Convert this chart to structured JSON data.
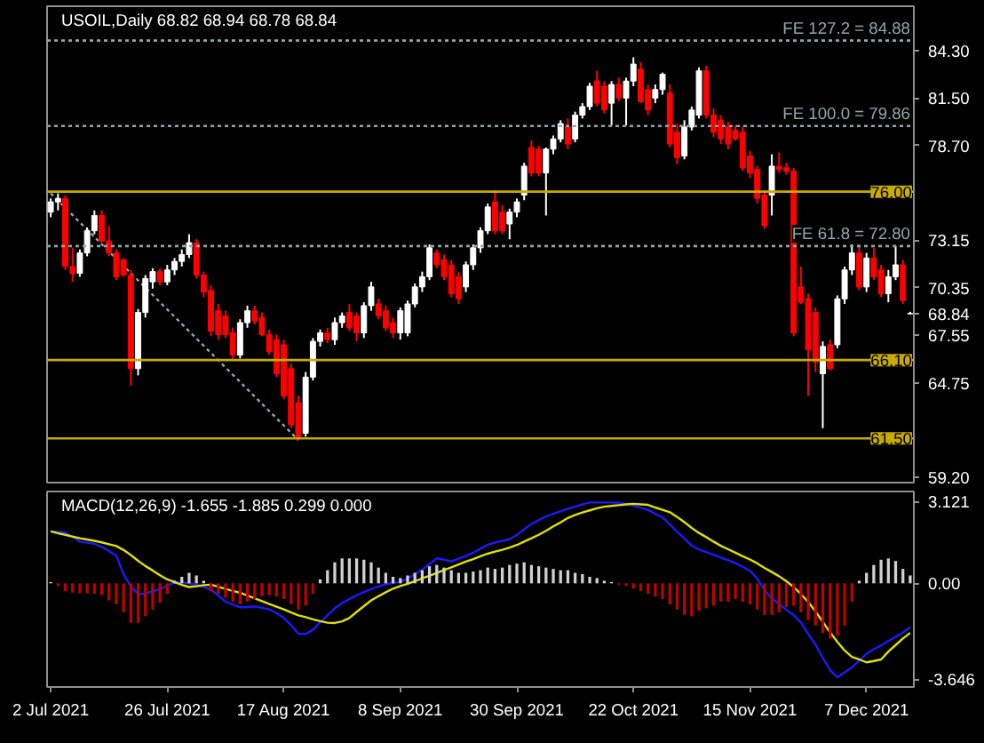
{
  "chart_data": [
    {
      "type": "candlestick",
      "title": "USOIL,Daily 68.82 68.94 68.78 68.84",
      "categories": [
        null,
        null,
        null,
        null,
        null,
        null,
        null,
        null,
        null,
        null,
        null,
        null,
        null,
        null,
        null,
        null,
        null,
        null,
        null,
        null,
        null,
        null,
        null,
        null,
        null,
        null,
        null,
        null,
        null,
        null,
        null,
        null,
        null,
        null,
        null,
        null,
        null,
        null,
        null,
        null,
        null,
        null,
        null,
        null,
        null,
        null,
        null,
        null,
        null,
        null,
        null,
        null,
        null,
        null,
        null,
        null,
        null,
        null,
        null,
        null,
        null,
        null,
        null,
        null,
        null,
        null,
        null,
        null,
        null,
        null,
        null,
        null,
        null,
        null,
        null,
        null,
        null,
        null,
        null,
        null,
        null,
        null,
        null,
        null,
        null,
        null,
        null,
        null,
        null,
        null,
        null,
        null,
        null,
        null,
        null,
        null,
        null,
        null,
        null,
        null,
        null,
        null,
        null,
        null,
        null,
        null,
        null,
        null,
        null,
        null,
        null,
        null,
        null,
        null,
        null,
        null,
        null,
        null,
        null
      ],
      "ohlc": [
        [
          74.8,
          75.6,
          74.5,
          75.4
        ],
        [
          75.4,
          75.9,
          74.9,
          75.6
        ],
        [
          75.6,
          75.8,
          71.4,
          71.6
        ],
        [
          71.6,
          72.7,
          70.7,
          71.2
        ],
        [
          71.2,
          72.6,
          71.0,
          72.4
        ],
        [
          72.4,
          73.9,
          72.2,
          73.7
        ],
        [
          73.7,
          74.9,
          73.5,
          74.6
        ],
        [
          74.6,
          74.9,
          73.0,
          73.1
        ],
        [
          73.1,
          74.0,
          72.2,
          72.4
        ],
        [
          72.4,
          72.6,
          70.8,
          71.0
        ],
        [
          72.0,
          72.1,
          71.0,
          71.1
        ],
        [
          71.1,
          71.4,
          64.6,
          65.6
        ],
        [
          65.6,
          69.1,
          65.2,
          68.9
        ],
        [
          68.9,
          71.1,
          68.6,
          70.9
        ],
        [
          70.7,
          71.5,
          70.3,
          71.3
        ],
        [
          71.3,
          71.5,
          70.5,
          70.7
        ],
        [
          70.7,
          71.7,
          70.5,
          71.4
        ],
        [
          71.4,
          72.1,
          71.1,
          71.9
        ],
        [
          71.9,
          72.6,
          71.6,
          72.3
        ],
        [
          72.3,
          73.5,
          72.1,
          73.0
        ],
        [
          73.0,
          73.2,
          70.9,
          71.1
        ],
        [
          71.1,
          71.3,
          69.8,
          70.1
        ],
        [
          70.2,
          70.5,
          67.5,
          67.8
        ],
        [
          69.0,
          69.4,
          67.3,
          67.6
        ],
        [
          68.7,
          69.0,
          67.4,
          67.6
        ],
        [
          67.7,
          68.0,
          66.1,
          66.4
        ],
        [
          66.4,
          68.5,
          66.2,
          68.3
        ],
        [
          68.3,
          69.3,
          68.0,
          69.0
        ],
        [
          69.0,
          69.3,
          68.2,
          68.4
        ],
        [
          68.6,
          68.9,
          67.5,
          67.6
        ],
        [
          67.6,
          67.9,
          66.4,
          66.6
        ],
        [
          67.3,
          67.6,
          65.1,
          65.3
        ],
        [
          67.0,
          67.3,
          63.8,
          64.0
        ],
        [
          65.6,
          65.9,
          62.1,
          62.3
        ],
        [
          63.6,
          64.0,
          61.4,
          61.6
        ],
        [
          61.8,
          65.4,
          61.6,
          65.1
        ],
        [
          65.1,
          67.4,
          64.9,
          67.2
        ],
        [
          67.2,
          67.9,
          66.9,
          67.7
        ],
        [
          67.7,
          68.0,
          67.1,
          67.3
        ],
        [
          67.3,
          68.6,
          67.0,
          68.3
        ],
        [
          68.3,
          68.9,
          68.0,
          68.7
        ],
        [
          68.9,
          69.4,
          67.8,
          68.0
        ],
        [
          68.7,
          68.9,
          67.2,
          67.7
        ],
        [
          67.7,
          69.5,
          67.4,
          69.3
        ],
        [
          69.3,
          70.7,
          69.0,
          70.4
        ],
        [
          69.4,
          69.7,
          68.5,
          68.7
        ],
        [
          69.0,
          69.3,
          67.8,
          68.0
        ],
        [
          68.3,
          68.6,
          67.4,
          67.7
        ],
        [
          67.7,
          69.2,
          67.3,
          69.0
        ],
        [
          67.7,
          69.6,
          67.5,
          69.4
        ],
        [
          69.4,
          70.6,
          69.2,
          70.4
        ],
        [
          70.4,
          71.3,
          70.1,
          71.0
        ],
        [
          71.0,
          72.9,
          70.8,
          72.7
        ],
        [
          72.4,
          72.6,
          71.5,
          71.7
        ],
        [
          72.0,
          72.3,
          70.8,
          71.0
        ],
        [
          71.7,
          72.0,
          69.8,
          70.0
        ],
        [
          71.0,
          71.3,
          69.4,
          69.7
        ],
        [
          70.4,
          71.9,
          70.1,
          71.7
        ],
        [
          71.7,
          72.9,
          71.4,
          72.7
        ],
        [
          72.7,
          73.9,
          72.4,
          73.7
        ],
        [
          73.7,
          75.3,
          73.5,
          75.1
        ],
        [
          75.4,
          76.1,
          73.5,
          73.7
        ],
        [
          74.8,
          75.2,
          73.5,
          73.7
        ],
        [
          74.1,
          75.0,
          73.2,
          74.8
        ],
        [
          74.8,
          75.6,
          74.5,
          75.4
        ],
        [
          75.8,
          77.7,
          75.5,
          77.5
        ],
        [
          78.6,
          79.0,
          76.9,
          77.1
        ],
        [
          78.5,
          78.7,
          76.9,
          77.1
        ],
        [
          77.1,
          78.6,
          74.6,
          78.5
        ],
        [
          78.5,
          79.3,
          78.2,
          79.1
        ],
        [
          79.1,
          80.2,
          78.9,
          80.0
        ],
        [
          79.8,
          80.3,
          78.5,
          78.8
        ],
        [
          79.1,
          80.7,
          78.9,
          80.5
        ],
        [
          80.5,
          81.2,
          80.3,
          81.0
        ],
        [
          81.0,
          82.4,
          80.8,
          82.2
        ],
        [
          82.5,
          83.1,
          81.0,
          81.2
        ],
        [
          82.2,
          82.5,
          80.6,
          80.8
        ],
        [
          81.2,
          82.5,
          79.9,
          82.3
        ],
        [
          82.3,
          82.7,
          81.3,
          81.5
        ],
        [
          81.5,
          82.7,
          79.9,
          82.5
        ],
        [
          82.5,
          83.9,
          82.2,
          83.5
        ],
        [
          83.2,
          83.6,
          81.2,
          81.3
        ],
        [
          82.0,
          82.3,
          80.5,
          80.8
        ],
        [
          81.5,
          82.3,
          81.2,
          82.0
        ],
        [
          82.0,
          83.0,
          81.7,
          82.9
        ],
        [
          81.8,
          82.3,
          78.6,
          78.8
        ],
        [
          79.5,
          80.0,
          77.6,
          78.0
        ],
        [
          78.1,
          80.2,
          77.9,
          79.8
        ],
        [
          79.8,
          81.0,
          79.6,
          80.8
        ],
        [
          80.5,
          83.3,
          80.3,
          83.1
        ],
        [
          83.1,
          83.4,
          80.3,
          80.5
        ],
        [
          80.5,
          80.9,
          79.2,
          79.5
        ],
        [
          80.2,
          80.5,
          78.8,
          79.1
        ],
        [
          79.8,
          80.1,
          78.5,
          78.8
        ],
        [
          79.6,
          79.9,
          79.0,
          79.1
        ],
        [
          79.5,
          79.8,
          77.2,
          77.4
        ],
        [
          78.1,
          78.4,
          76.8,
          77.1
        ],
        [
          77.3,
          77.5,
          75.3,
          75.6
        ],
        [
          75.8,
          76.1,
          73.8,
          74.0
        ],
        [
          75.8,
          78.2,
          74.6,
          77.5
        ],
        [
          77.5,
          78.3,
          77.1,
          77.3
        ],
        [
          77.4,
          77.7,
          77.0,
          77.2
        ],
        [
          77.2,
          77.4,
          67.5,
          67.7
        ],
        [
          70.4,
          71.6,
          69.4,
          69.5
        ],
        [
          69.7,
          70.0,
          64.0,
          66.7
        ],
        [
          68.9,
          69.2,
          65.4,
          66.0
        ],
        [
          65.3,
          67.2,
          62.1,
          66.9
        ],
        [
          67.0,
          67.3,
          65.5,
          65.6
        ],
        [
          67.0,
          69.9,
          66.8,
          69.7
        ],
        [
          69.7,
          71.6,
          69.4,
          71.4
        ],
        [
          71.4,
          72.9,
          71.1,
          72.4
        ],
        [
          72.4,
          72.9,
          70.2,
          70.4
        ],
        [
          70.4,
          72.4,
          70.1,
          72.1
        ],
        [
          72.1,
          72.7,
          70.8,
          71.0
        ],
        [
          71.4,
          71.7,
          69.8,
          70.0
        ],
        [
          70.0,
          71.4,
          69.5,
          71.0
        ],
        [
          71.0,
          72.8,
          70.8,
          71.7
        ],
        [
          71.7,
          72.0,
          69.4,
          69.6
        ],
        [
          68.82,
          68.94,
          68.78,
          68.84
        ]
      ],
      "colors": [
        "#ffffff",
        "#ffffff",
        "#ff0000",
        "#ff0000",
        "#ffffff",
        "#ffffff",
        "#ffffff",
        "#ff0000",
        "#ff0000",
        "#ff0000",
        "#ff0000",
        "#ff0000",
        "#ffffff",
        "#ffffff",
        "#ffffff",
        "#ff0000",
        "#ffffff",
        "#ffffff",
        "#ffffff",
        "#ffffff",
        "#ff0000",
        "#ff0000",
        "#ff0000",
        "#ff0000",
        "#ff0000",
        "#ff0000",
        "#ffffff",
        "#ffffff",
        "#ff0000",
        "#ff0000",
        "#ff0000",
        "#ff0000",
        "#ff0000",
        "#ff0000",
        "#ff0000",
        "#ffffff",
        "#ffffff",
        "#ffffff",
        "#ff0000",
        "#ffffff",
        "#ffffff",
        "#ff0000",
        "#ff0000",
        "#ffffff",
        "#ffffff",
        "#ff0000",
        "#ff0000",
        "#ff0000",
        "#ffffff",
        "#ffffff",
        "#ffffff",
        "#ffffff",
        "#ffffff",
        "#ff0000",
        "#ff0000",
        "#ff0000",
        "#ff0000",
        "#ffffff",
        "#ffffff",
        "#ffffff",
        "#ffffff",
        "#ff0000",
        "#ff0000",
        "#ffffff",
        "#ffffff",
        "#ffffff",
        "#ff0000",
        "#ff0000",
        "#ffffff",
        "#ffffff",
        "#ffffff",
        "#ff0000",
        "#ffffff",
        "#ffffff",
        "#ffffff",
        "#ff0000",
        "#ff0000",
        "#ffffff",
        "#ff0000",
        "#ffffff",
        "#ffffff",
        "#ff0000",
        "#ff0000",
        "#ffffff",
        "#ffffff",
        "#ff0000",
        "#ff0000",
        "#ffffff",
        "#ffffff",
        "#ffffff",
        "#ff0000",
        "#ff0000",
        "#ff0000",
        "#ff0000",
        "#ff0000",
        "#ff0000",
        "#ff0000",
        "#ff0000",
        "#ff0000",
        "#ffffff",
        "#ff0000",
        "#ff0000",
        "#ff0000",
        "#ff0000",
        "#ff0000",
        "#ff0000",
        "#ffffff",
        "#ff0000",
        "#ffffff",
        "#ffffff",
        "#ffffff",
        "#ff0000",
        "#ffffff",
        "#ff0000",
        "#ff0000",
        "#ffffff",
        "#ffffff",
        "#ff0000",
        "#ffffff"
      ],
      "series": [
        {
          "type": "line",
          "values": [
            75.9,
            null,
            null,
            null,
            null,
            null,
            null,
            null,
            null,
            null,
            null,
            null,
            null,
            null,
            null,
            null,
            null,
            null,
            null,
            null,
            null,
            null,
            null,
            null,
            null,
            null,
            null,
            null,
            null,
            null,
            null,
            null,
            null,
            null,
            61.4,
            null,
            null,
            null,
            null,
            null,
            null,
            null,
            null,
            null,
            null,
            null,
            null,
            null,
            null,
            null,
            null,
            null,
            null,
            null,
            null,
            null,
            null,
            null,
            null,
            null,
            null,
            null,
            null,
            null,
            null,
            null,
            null,
            null,
            null,
            null,
            null,
            null,
            null,
            null,
            null,
            null,
            null,
            null,
            null,
            null,
            null,
            null,
            null,
            null,
            null,
            null,
            null,
            null,
            null,
            null,
            null,
            null,
            null,
            null,
            null,
            null,
            null,
            null,
            null,
            null,
            null,
            null,
            null,
            null,
            null,
            null,
            null,
            null,
            null,
            null,
            null,
            null,
            null,
            null,
            null,
            null,
            null,
            null,
            null
          ],
          "color": "#8fa8a8",
          "line_style": "dotted"
        }
      ],
      "ylim": [
        58.9,
        86.9
      ],
      "yticks": [
        {
          "value": 84.3,
          "label": "84.30"
        },
        {
          "value": 81.5,
          "label": "81.50"
        },
        {
          "value": 78.7,
          "label": "78.70"
        },
        {
          "value": 73.15,
          "label": "73.15"
        },
        {
          "value": 70.35,
          "label": "70.35"
        },
        {
          "value": 68.84,
          "label": "68.84"
        },
        {
          "value": 67.55,
          "label": "67.55"
        },
        {
          "value": 64.75,
          "label": "64.75"
        },
        {
          "value": 59.2,
          "label": "59.20"
        }
      ],
      "ref_lines": [
        {
          "axis": "y",
          "value": 84.88,
          "label": "FE 127.2 = 84.88",
          "color": "#8fa8a8",
          "line_style": "dotted"
        },
        {
          "axis": "y",
          "value": 79.86,
          "label": "FE 100.0 = 79.86",
          "color": "#8fa8a8",
          "line_style": "dotted"
        },
        {
          "axis": "y",
          "value": 72.8,
          "label": "FE 61.8 = 72.80",
          "color": "#8fa8a8",
          "line_style": "dotted"
        },
        {
          "axis": "y",
          "value": 76.0,
          "label": "76.00",
          "color": "#c8aa00",
          "line_style": "solid"
        },
        {
          "axis": "y",
          "value": 66.1,
          "label": "66.10",
          "color": "#c8aa00",
          "line_style": "solid"
        },
        {
          "axis": "y",
          "value": 61.5,
          "label": "61.50",
          "color": "#c8aa00",
          "line_style": "solid"
        }
      ],
      "tick_labels": "y"
    },
    {
      "type": "bar",
      "title": "MACD(12,26,9) -1.655 -1.885 0.299 0.000",
      "categories": [
        "2 Jul 2021",
        null,
        null,
        null,
        null,
        null,
        null,
        null,
        null,
        null,
        null,
        null,
        null,
        null,
        null,
        null,
        "26 Jul 2021",
        null,
        null,
        null,
        null,
        null,
        null,
        null,
        null,
        null,
        null,
        null,
        null,
        null,
        null,
        null,
        "17 Aug 2021",
        null,
        null,
        null,
        null,
        null,
        null,
        null,
        null,
        null,
        null,
        null,
        null,
        null,
        null,
        null,
        "8 Sep 2021",
        null,
        null,
        null,
        null,
        null,
        null,
        null,
        null,
        null,
        null,
        null,
        null,
        null,
        null,
        null,
        "30 Sep 2021",
        null,
        null,
        null,
        null,
        null,
        null,
        null,
        null,
        null,
        null,
        null,
        null,
        null,
        null,
        null,
        "22 Oct 2021",
        null,
        null,
        null,
        null,
        null,
        null,
        null,
        null,
        null,
        null,
        null,
        null,
        null,
        null,
        null,
        "15 Nov 2021",
        null,
        null,
        null,
        null,
        null,
        null,
        null,
        null,
        null,
        null,
        null,
        null,
        null,
        null,
        null,
        "7 Dec 2021",
        null,
        null,
        null,
        null,
        null,
        null
      ],
      "series": [
        {
          "colors": [
            "#d0d0d0",
            "#c00000",
            "#c00000",
            "#c00000",
            "#c00000",
            "#c00000",
            "#c00000",
            "#c00000",
            "#c00000",
            "#c00000",
            "#c00000",
            "#c00000",
            "#c00000",
            "#c00000",
            "#c00000",
            "#c00000",
            "#c00000",
            "#d0d0d0",
            "#d0d0d0",
            "#d0d0d0",
            "#d0d0d0",
            "#d0d0d0",
            "#c00000",
            "#c00000",
            "#c00000",
            "#c00000",
            "#c00000",
            "#c00000",
            "#c00000",
            "#c00000",
            "#c00000",
            "#c00000",
            "#c00000",
            "#c00000",
            "#c00000",
            "#c00000",
            "#c00000",
            "#d0d0d0",
            "#d0d0d0",
            "#d0d0d0",
            "#d0d0d0",
            "#d0d0d0",
            "#d0d0d0",
            "#d0d0d0",
            "#d0d0d0",
            "#d0d0d0",
            "#d0d0d0",
            "#d0d0d0",
            "#d0d0d0",
            "#d0d0d0",
            "#d0d0d0",
            "#d0d0d0",
            "#d0d0d0",
            "#d0d0d0",
            "#d0d0d0",
            "#d0d0d0",
            "#d0d0d0",
            "#d0d0d0",
            "#d0d0d0",
            "#d0d0d0",
            "#d0d0d0",
            "#d0d0d0",
            "#d0d0d0",
            "#d0d0d0",
            "#d0d0d0",
            "#d0d0d0",
            "#d0d0d0",
            "#d0d0d0",
            "#d0d0d0",
            "#d0d0d0",
            "#d0d0d0",
            "#d0d0d0",
            "#d0d0d0",
            "#d0d0d0",
            "#d0d0d0",
            "#d0d0d0",
            "#d0d0d0",
            "#d0d0d0",
            "#c00000",
            "#c00000",
            "#c00000",
            "#c00000",
            "#c00000",
            "#c00000",
            "#c00000",
            "#c00000",
            "#c00000",
            "#c00000",
            "#c00000",
            "#c00000",
            "#c00000",
            "#c00000",
            "#c00000",
            "#c00000",
            "#c00000",
            "#c00000",
            "#c00000",
            "#c00000",
            "#c00000",
            "#c00000",
            "#c00000",
            "#c00000",
            "#c00000",
            "#c00000",
            "#c00000",
            "#c00000",
            "#c00000",
            "#c00000",
            "#c00000",
            "#c00000",
            "#c00000",
            "#d0d0d0",
            "#d0d0d0",
            "#d0d0d0",
            "#d0d0d0",
            "#d0d0d0",
            "#d0d0d0",
            "#d0d0d0",
            "#d0d0d0"
          ],
          "values": [
            0.05,
            -0.1,
            -0.3,
            -0.35,
            -0.38,
            -0.38,
            -0.4,
            -0.45,
            -0.65,
            -0.8,
            -1.1,
            -1.5,
            -1.5,
            -1.25,
            -1.0,
            -0.75,
            -0.4,
            0.1,
            0.25,
            0.4,
            0.3,
            0.1,
            -0.3,
            -0.4,
            -0.55,
            -0.7,
            -0.8,
            -0.7,
            -0.6,
            -0.5,
            -0.45,
            -0.5,
            -0.6,
            -0.8,
            -1.0,
            -0.85,
            -0.4,
            0.15,
            0.5,
            0.8,
            0.95,
            0.95,
            0.95,
            0.9,
            0.8,
            0.6,
            0.4,
            0.25,
            0.2,
            0.3,
            0.4,
            0.5,
            0.65,
            0.7,
            0.6,
            0.5,
            0.4,
            0.4,
            0.45,
            0.5,
            0.6,
            0.55,
            0.6,
            0.7,
            0.75,
            0.8,
            0.7,
            0.65,
            0.6,
            0.55,
            0.5,
            0.5,
            0.4,
            0.35,
            0.25,
            0.2,
            0.1,
            0.05,
            -0.05,
            -0.1,
            -0.2,
            -0.3,
            -0.4,
            -0.5,
            -0.6,
            -0.8,
            -1.0,
            -1.2,
            -1.25,
            -1.05,
            -0.95,
            -0.85,
            -0.7,
            -0.7,
            -0.6,
            -0.7,
            -0.8,
            -1.0,
            -1.2,
            -1.2,
            -1.1,
            -0.9,
            -0.85,
            -1.1,
            -1.4,
            -1.6,
            -1.9,
            -2.1,
            -2.0,
            -1.6,
            -0.7,
            0.1,
            0.4,
            0.7,
            0.9,
            0.95,
            0.85,
            0.55,
            0.3
          ]
        },
        {
          "type": "line",
          "color": "#1a1aff",
          "values": [
            1.98,
            1.96,
            1.94,
            1.78,
            1.59,
            1.55,
            1.51,
            1.39,
            1.23,
            1.05,
            0.35,
            -0.12,
            -0.41,
            -0.38,
            -0.31,
            -0.22,
            -0.09,
            0.03,
            0.04,
            0.0,
            -0.05,
            -0.14,
            -0.24,
            -0.46,
            -0.7,
            -0.81,
            -0.91,
            -0.9,
            -0.88,
            -0.93,
            -0.99,
            -1.13,
            -1.31,
            -1.59,
            -1.92,
            -1.93,
            -1.77,
            -1.48,
            -1.22,
            -0.95,
            -0.75,
            -0.6,
            -0.46,
            -0.33,
            -0.22,
            -0.12,
            -0.03,
            0.02,
            0.06,
            0.18,
            0.35,
            0.52,
            0.73,
            0.95,
            0.9,
            0.84,
            0.94,
            1.04,
            1.17,
            1.32,
            1.47,
            1.55,
            1.62,
            1.68,
            1.84,
            2.06,
            2.26,
            2.41,
            2.55,
            2.65,
            2.74,
            2.84,
            2.92,
            3.01,
            3.08,
            3.08,
            3.08,
            3.08,
            3.07,
            3.02,
            2.96,
            2.88,
            2.8,
            2.65,
            2.51,
            2.24,
            1.96,
            1.71,
            1.44,
            1.29,
            1.19,
            1.09,
            0.98,
            0.88,
            0.77,
            0.63,
            0.48,
            0.18,
            -0.26,
            -0.57,
            -0.79,
            -1.01,
            -1.21,
            -1.49,
            -1.93,
            -2.34,
            -2.84,
            -3.3,
            -3.58,
            -3.39,
            -3.2,
            -2.95,
            -2.68,
            -2.51,
            -2.37,
            -2.2,
            -2.04,
            -1.88,
            -1.66
          ]
        },
        {
          "type": "line",
          "color": "#e0e000",
          "values": [
            1.98,
            1.91,
            1.85,
            1.78,
            1.72,
            1.67,
            1.62,
            1.56,
            1.49,
            1.42,
            1.27,
            1.08,
            0.86,
            0.66,
            0.49,
            0.31,
            0.15,
            0.05,
            -0.06,
            -0.14,
            -0.11,
            -0.07,
            -0.05,
            -0.13,
            -0.21,
            -0.29,
            -0.36,
            -0.47,
            -0.57,
            -0.68,
            -0.79,
            -0.89,
            -0.99,
            -1.11,
            -1.22,
            -1.29,
            -1.37,
            -1.44,
            -1.5,
            -1.51,
            -1.45,
            -1.32,
            -1.09,
            -0.87,
            -0.65,
            -0.49,
            -0.34,
            -0.2,
            -0.1,
            -0.02,
            0.08,
            0.19,
            0.29,
            0.4,
            0.51,
            0.61,
            0.72,
            0.83,
            0.92,
            1.03,
            1.13,
            1.21,
            1.28,
            1.36,
            1.46,
            1.59,
            1.72,
            1.85,
            2.0,
            2.17,
            2.32,
            2.49,
            2.61,
            2.7,
            2.78,
            2.86,
            2.92,
            2.95,
            2.98,
            3.01,
            3.03,
            3.01,
            2.99,
            2.89,
            2.8,
            2.71,
            2.53,
            2.33,
            2.11,
            1.92,
            1.76,
            1.59,
            1.43,
            1.3,
            1.17,
            1.03,
            0.91,
            0.76,
            0.59,
            0.43,
            0.27,
            0.08,
            -0.14,
            -0.41,
            -0.71,
            -1.07,
            -1.47,
            -1.87,
            -2.23,
            -2.56,
            -2.8,
            -2.9,
            -3.01,
            -2.96,
            -2.9,
            -2.6,
            -2.35,
            -2.1,
            -1.89
          ]
        }
      ],
      "ylim": [
        -3.95,
        3.5
      ],
      "yticks": [
        3.121,
        {
          "value": 0,
          "label": "0.00"
        },
        -3.646
      ]
    }
  ]
}
